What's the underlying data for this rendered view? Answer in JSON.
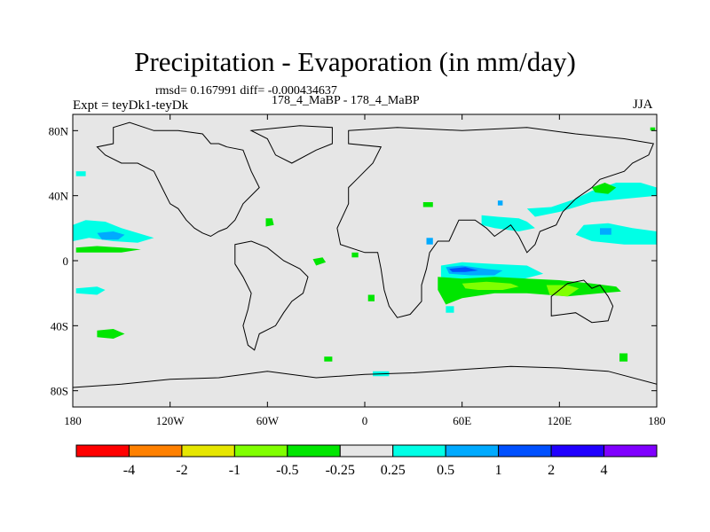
{
  "title": "Precipitation - Evaporation (in mm/day)",
  "subtitle": "rmsd= 0.167991 diff= -0.000434637",
  "left_label": "Expt = teyDk1-teyDk",
  "center_label": "178_4_MaBP - 178_4_MaBP",
  "right_label": "JJA",
  "map": {
    "lon_range": [
      -180,
      180
    ],
    "lat_range": [
      -90,
      90
    ],
    "background_color": "#e6e6e6",
    "lon_ticks": [
      {
        "value": -180,
        "label": "180"
      },
      {
        "value": -120,
        "label": "120W"
      },
      {
        "value": -60,
        "label": "60W"
      },
      {
        "value": 0,
        "label": "0"
      },
      {
        "value": 60,
        "label": "60E"
      },
      {
        "value": 120,
        "label": "120E"
      },
      {
        "value": 180,
        "label": "180"
      }
    ],
    "lat_ticks": [
      {
        "value": 80,
        "label": "80N"
      },
      {
        "value": 40,
        "label": "40N"
      },
      {
        "value": 0,
        "label": "0"
      },
      {
        "value": -40,
        "label": "40S"
      },
      {
        "value": -80,
        "label": "80S"
      }
    ]
  },
  "colorbar": {
    "colors": [
      "#ff0000",
      "#ff8000",
      "#e6e600",
      "#80ff00",
      "#00e600",
      "#e6e6e6",
      "#00ffe6",
      "#00aaff",
      "#0050ff",
      "#2000ff",
      "#8000ff"
    ],
    "labels": [
      "-4",
      "-2",
      "-1",
      "-0.5",
      "-0.25",
      "0.25",
      "0.5",
      "1",
      "2",
      "4"
    ]
  },
  "field_regions": [
    {
      "name": "central-pacific-north-band",
      "class_index": 6,
      "points": [
        [
          -180,
          22
        ],
        [
          -172,
          25
        ],
        [
          -160,
          24
        ],
        [
          -150,
          20
        ],
        [
          -140,
          17
        ],
        [
          -130,
          14
        ],
        [
          -140,
          11
        ],
        [
          -155,
          12
        ],
        [
          -170,
          14
        ],
        [
          -180,
          12
        ]
      ]
    },
    {
      "name": "central-pacific-core",
      "class_index": 7,
      "points": [
        [
          -165,
          17
        ],
        [
          -155,
          18
        ],
        [
          -148,
          16
        ],
        [
          -152,
          13
        ],
        [
          -162,
          13
        ]
      ]
    },
    {
      "name": "pacific-itcz-green",
      "class_index": 4,
      "points": [
        [
          -178,
          8
        ],
        [
          -165,
          9
        ],
        [
          -150,
          8
        ],
        [
          -138,
          7
        ],
        [
          -150,
          5
        ],
        [
          -165,
          5
        ],
        [
          -178,
          5
        ]
      ]
    },
    {
      "name": "pacific-south-cyan",
      "class_index": 6,
      "points": [
        [
          -178,
          -17
        ],
        [
          -165,
          -16
        ],
        [
          -160,
          -18
        ],
        [
          -165,
          -21
        ],
        [
          -178,
          -20
        ]
      ]
    },
    {
      "name": "pacific-south-green",
      "class_index": 4,
      "points": [
        [
          -165,
          -43
        ],
        [
          -155,
          -42
        ],
        [
          -148,
          -45
        ],
        [
          -155,
          -48
        ],
        [
          -165,
          -47
        ]
      ]
    },
    {
      "name": "central-america-green",
      "class_index": 4,
      "points": [
        [
          -61,
          26
        ],
        [
          -57,
          26
        ],
        [
          -56,
          22
        ],
        [
          -61,
          21
        ]
      ]
    },
    {
      "name": "atlantic-green-1",
      "class_index": 4,
      "points": [
        [
          -32,
          1
        ],
        [
          -26,
          2
        ],
        [
          -24,
          -1
        ],
        [
          -30,
          -3
        ]
      ]
    },
    {
      "name": "atlantic-green-2",
      "class_index": 4,
      "points": [
        [
          -8,
          5
        ],
        [
          -4,
          5
        ],
        [
          -4,
          2
        ],
        [
          -8,
          2
        ]
      ]
    },
    {
      "name": "atlantic-green-3",
      "class_index": 4,
      "points": [
        [
          2,
          -21
        ],
        [
          6,
          -21
        ],
        [
          6,
          -25
        ],
        [
          2,
          -25
        ]
      ]
    },
    {
      "name": "indian-ocean-cyan-band",
      "class_index": 6,
      "points": [
        [
          47,
          -3
        ],
        [
          60,
          -1
        ],
        [
          80,
          -2
        ],
        [
          100,
          -3
        ],
        [
          110,
          -8
        ],
        [
          95,
          -12
        ],
        [
          75,
          -12
        ],
        [
          55,
          -12
        ],
        [
          47,
          -10
        ]
      ]
    },
    {
      "name": "indian-ocean-blue",
      "class_index": 7,
      "points": [
        [
          50,
          -4
        ],
        [
          60,
          -3
        ],
        [
          75,
          -5
        ],
        [
          85,
          -6
        ],
        [
          80,
          -9
        ],
        [
          65,
          -9
        ],
        [
          52,
          -8
        ]
      ]
    },
    {
      "name": "indian-ocean-darkblue",
      "class_index": 8,
      "points": [
        [
          52,
          -5
        ],
        [
          62,
          -4
        ],
        [
          70,
          -6
        ],
        [
          62,
          -7
        ],
        [
          54,
          -7
        ]
      ]
    },
    {
      "name": "indian-ocean-green-band",
      "class_index": 4,
      "points": [
        [
          45,
          -10
        ],
        [
          60,
          -11
        ],
        [
          80,
          -10
        ],
        [
          100,
          -11
        ],
        [
          120,
          -12
        ],
        [
          140,
          -14
        ],
        [
          155,
          -16
        ],
        [
          158,
          -19
        ],
        [
          145,
          -20
        ],
        [
          125,
          -22
        ],
        [
          100,
          -20
        ],
        [
          80,
          -20
        ],
        [
          60,
          -23
        ],
        [
          50,
          -27
        ],
        [
          45,
          -18
        ]
      ]
    },
    {
      "name": "indian-ocean-lightgreen",
      "class_index": 3,
      "points": [
        [
          60,
          -14
        ],
        [
          75,
          -13
        ],
        [
          90,
          -14
        ],
        [
          95,
          -16
        ],
        [
          85,
          -18
        ],
        [
          70,
          -18
        ],
        [
          62,
          -17
        ]
      ]
    },
    {
      "name": "indian-ocean-lightgreen-2",
      "class_index": 3,
      "points": [
        [
          112,
          -15
        ],
        [
          125,
          -15
        ],
        [
          132,
          -17
        ],
        [
          125,
          -22
        ],
        [
          114,
          -21
        ]
      ]
    },
    {
      "name": "india-cyan",
      "class_index": 6,
      "points": [
        [
          72,
          28
        ],
        [
          82,
          27
        ],
        [
          95,
          26
        ],
        [
          100,
          24
        ],
        [
          105,
          20
        ],
        [
          95,
          18
        ],
        [
          80,
          20
        ],
        [
          72,
          22
        ]
      ]
    },
    {
      "name": "india-green",
      "class_index": 4,
      "points": [
        [
          36,
          36
        ],
        [
          42,
          36
        ],
        [
          42,
          33
        ],
        [
          36,
          33
        ]
      ]
    },
    {
      "name": "asia-cyan-north",
      "class_index": 6,
      "points": [
        [
          100,
          32
        ],
        [
          115,
          33
        ],
        [
          130,
          38
        ],
        [
          140,
          43
        ],
        [
          155,
          48
        ],
        [
          170,
          48
        ],
        [
          180,
          45
        ],
        [
          180,
          40
        ],
        [
          160,
          38
        ],
        [
          140,
          36
        ],
        [
          120,
          30
        ],
        [
          105,
          27
        ]
      ]
    },
    {
      "name": "asia-green-patch",
      "class_index": 4,
      "points": [
        [
          140,
          45
        ],
        [
          148,
          48
        ],
        [
          155,
          45
        ],
        [
          150,
          41
        ],
        [
          142,
          42
        ]
      ]
    },
    {
      "name": "asia-blue-dot",
      "class_index": 7,
      "points": [
        [
          82,
          37
        ],
        [
          85,
          37
        ],
        [
          85,
          34
        ],
        [
          82,
          34
        ]
      ]
    },
    {
      "name": "west-pacific-cyan",
      "class_index": 6,
      "points": [
        [
          135,
          22
        ],
        [
          150,
          23
        ],
        [
          165,
          20
        ],
        [
          180,
          18
        ],
        [
          180,
          10
        ],
        [
          160,
          10
        ],
        [
          140,
          12
        ],
        [
          130,
          16
        ]
      ]
    },
    {
      "name": "west-pacific-blue",
      "class_index": 7,
      "points": [
        [
          145,
          20
        ],
        [
          152,
          20
        ],
        [
          152,
          16
        ],
        [
          145,
          16
        ]
      ]
    },
    {
      "name": "east-africa-blue",
      "class_index": 7,
      "points": [
        [
          38,
          14
        ],
        [
          42,
          14
        ],
        [
          42,
          10
        ],
        [
          38,
          10
        ]
      ]
    },
    {
      "name": "south-atlantic-green",
      "class_index": 4,
      "points": [
        [
          -25,
          -59
        ],
        [
          -20,
          -59
        ],
        [
          -20,
          -62
        ],
        [
          -25,
          -62
        ]
      ]
    },
    {
      "name": "south-indian-cyan",
      "class_index": 6,
      "points": [
        [
          5,
          -68
        ],
        [
          15,
          -68
        ],
        [
          15,
          -71
        ],
        [
          5,
          -71
        ]
      ]
    },
    {
      "name": "south-pacific-green-2",
      "class_index": 4,
      "points": [
        [
          157,
          -57
        ],
        [
          162,
          -57
        ],
        [
          162,
          -62
        ],
        [
          157,
          -62
        ]
      ]
    },
    {
      "name": "south-america-cyan",
      "class_index": 6,
      "points": [
        [
          50,
          -28
        ],
        [
          55,
          -28
        ],
        [
          55,
          -32
        ],
        [
          50,
          -32
        ]
      ]
    },
    {
      "name": "arctic-green-dot",
      "class_index": 4,
      "points": [
        [
          176,
          82
        ],
        [
          179,
          82
        ],
        [
          179,
          80
        ],
        [
          176,
          80
        ]
      ]
    },
    {
      "name": "north-atlantic-cyan",
      "class_index": 6,
      "points": [
        [
          -178,
          55
        ],
        [
          -172,
          55
        ],
        [
          -172,
          52
        ],
        [
          -178,
          52
        ]
      ]
    }
  ],
  "coastlines": [
    {
      "name": "americas-coastline",
      "points": [
        [
          -155,
          82
        ],
        [
          -145,
          85
        ],
        [
          -130,
          80
        ],
        [
          -115,
          80
        ],
        [
          -100,
          78
        ],
        [
          -95,
          72
        ],
        [
          -90,
          72
        ],
        [
          -85,
          70
        ],
        [
          -75,
          68
        ],
        [
          -70,
          55
        ],
        [
          -65,
          45
        ],
        [
          -75,
          35
        ],
        [
          -80,
          25
        ],
        [
          -85,
          20
        ],
        [
          -90,
          18
        ],
        [
          -95,
          15
        ],
        [
          -100,
          17
        ],
        [
          -105,
          20
        ],
        [
          -110,
          25
        ],
        [
          -115,
          32
        ],
        [
          -120,
          35
        ],
        [
          -125,
          45
        ],
        [
          -130,
          55
        ],
        [
          -140,
          60
        ],
        [
          -150,
          60
        ],
        [
          -160,
          65
        ],
        [
          -165,
          70
        ],
        [
          -155,
          72
        ]
      ]
    },
    {
      "name": "south-america-coastline",
      "points": [
        [
          -80,
          10
        ],
        [
          -70,
          12
        ],
        [
          -60,
          8
        ],
        [
          -50,
          0
        ],
        [
          -40,
          -5
        ],
        [
          -35,
          -10
        ],
        [
          -38,
          -20
        ],
        [
          -45,
          -25
        ],
        [
          -50,
          -32
        ],
        [
          -55,
          -40
        ],
        [
          -65,
          -45
        ],
        [
          -68,
          -55
        ],
        [
          -72,
          -52
        ],
        [
          -75,
          -40
        ],
        [
          -72,
          -30
        ],
        [
          -70,
          -20
        ],
        [
          -75,
          -10
        ],
        [
          -80,
          -2
        ]
      ]
    },
    {
      "name": "eurasia-africa-coastline",
      "points": [
        [
          -10,
          80
        ],
        [
          20,
          82
        ],
        [
          60,
          80
        ],
        [
          100,
          82
        ],
        [
          130,
          78
        ],
        [
          160,
          75
        ],
        [
          178,
          72
        ],
        [
          175,
          65
        ],
        [
          165,
          60
        ],
        [
          160,
          55
        ],
        [
          145,
          50
        ],
        [
          140,
          45
        ],
        [
          130,
          38
        ],
        [
          122,
          30
        ],
        [
          118,
          22
        ],
        [
          108,
          18
        ],
        [
          105,
          10
        ],
        [
          100,
          5
        ],
        [
          95,
          15
        ],
        [
          90,
          22
        ],
        [
          80,
          15
        ],
        [
          75,
          20
        ],
        [
          68,
          25
        ],
        [
          58,
          25
        ],
        [
          52,
          12
        ],
        [
          45,
          12
        ],
        [
          40,
          5
        ],
        [
          38,
          -5
        ],
        [
          35,
          -15
        ],
        [
          35,
          -25
        ],
        [
          28,
          -33
        ],
        [
          20,
          -35
        ],
        [
          15,
          -28
        ],
        [
          12,
          -18
        ],
        [
          10,
          -5
        ],
        [
          8,
          5
        ],
        [
          0,
          5
        ],
        [
          -15,
          10
        ],
        [
          -17,
          20
        ],
        [
          -10,
          35
        ],
        [
          -10,
          45
        ],
        [
          -5,
          50
        ],
        [
          5,
          60
        ],
        [
          10,
          70
        ],
        [
          -10,
          72
        ]
      ]
    },
    {
      "name": "australia-coastline",
      "points": [
        [
          115,
          -22
        ],
        [
          125,
          -14
        ],
        [
          135,
          -12
        ],
        [
          140,
          -17
        ],
        [
          145,
          -15
        ],
        [
          150,
          -22
        ],
        [
          153,
          -28
        ],
        [
          150,
          -37
        ],
        [
          140,
          -38
        ],
        [
          130,
          -32
        ],
        [
          115,
          -34
        ]
      ]
    },
    {
      "name": "antarctica-coastline",
      "points": [
        [
          -180,
          -78
        ],
        [
          -150,
          -76
        ],
        [
          -120,
          -73
        ],
        [
          -90,
          -72
        ],
        [
          -60,
          -68
        ],
        [
          -30,
          -72
        ],
        [
          0,
          -70
        ],
        [
          30,
          -69
        ],
        [
          60,
          -67
        ],
        [
          90,
          -65
        ],
        [
          120,
          -66
        ],
        [
          150,
          -68
        ],
        [
          180,
          -76
        ],
        [
          180,
          -90
        ],
        [
          -180,
          -90
        ]
      ]
    },
    {
      "name": "greenland-coastline",
      "points": [
        [
          -70,
          80
        ],
        [
          -40,
          83
        ],
        [
          -20,
          82
        ],
        [
          -20,
          72
        ],
        [
          -30,
          68
        ],
        [
          -45,
          60
        ],
        [
          -55,
          65
        ],
        [
          -60,
          75
        ]
      ]
    }
  ]
}
